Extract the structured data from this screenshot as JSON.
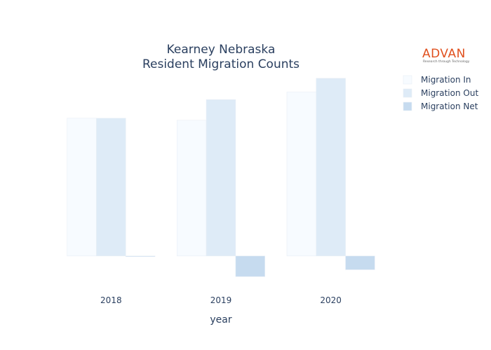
{
  "logo": {
    "name": "ADVAN",
    "tagline": "Research through Technology"
  },
  "chart_data": {
    "type": "bar",
    "title_lines": [
      "Kearney Nebraska",
      "Resident Migration Counts"
    ],
    "xlabel": "year",
    "ylabel": "",
    "categories": [
      "2018",
      "2019",
      "2020"
    ],
    "series": [
      {
        "name": "Migration In",
        "values": [
          200,
          197,
          238
        ],
        "color": "#f7fbff"
      },
      {
        "name": "Migration Out",
        "values": [
          200,
          227,
          258
        ],
        "color": "#deebf7"
      },
      {
        "name": "Migration Net",
        "values": [
          0,
          -30,
          -20
        ],
        "color": "#c6dbef"
      }
    ],
    "ylim": [
      -40,
      270
    ],
    "grid": false,
    "show_y_ticks": false,
    "legend_position": "top-right"
  }
}
